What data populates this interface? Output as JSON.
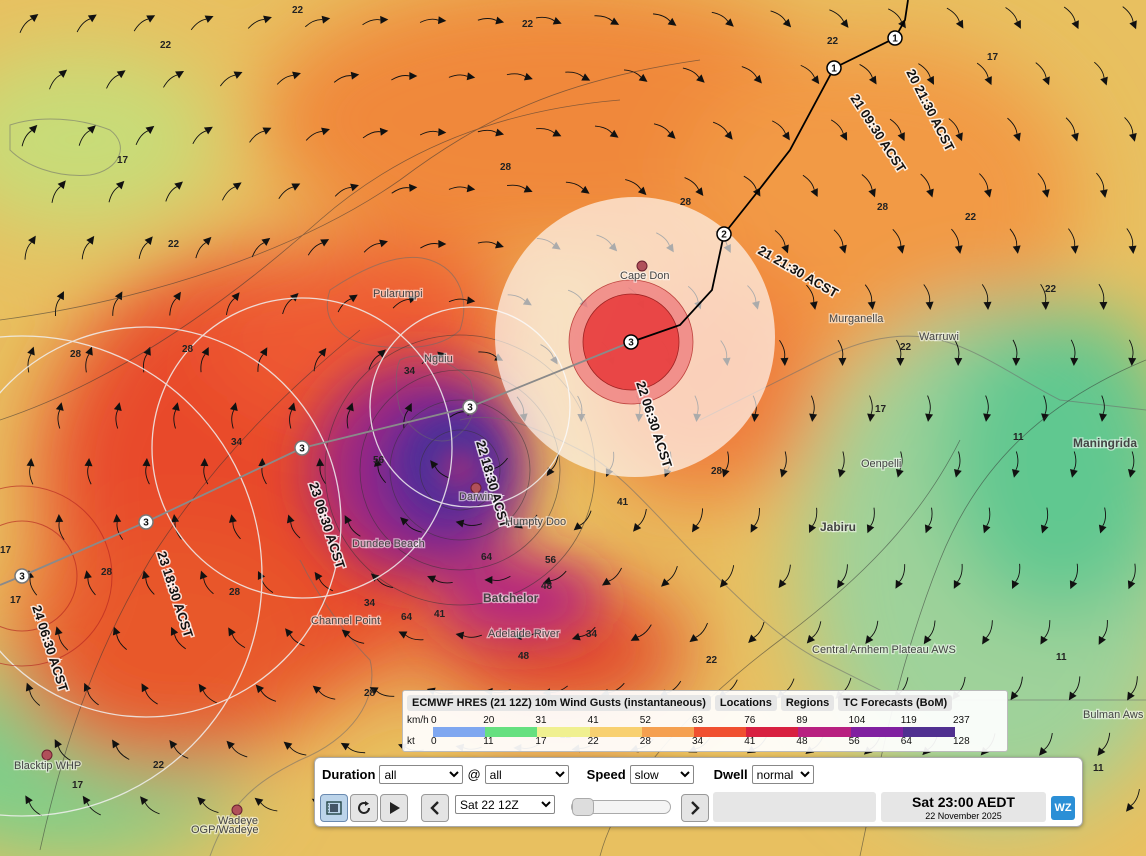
{
  "map": {
    "places": [
      {
        "name": "Cape Don",
        "bold": false
      },
      {
        "name": "Pularumpi",
        "bold": false
      },
      {
        "name": "Nguiu",
        "bold": false
      },
      {
        "name": "Darwin",
        "bold": false
      },
      {
        "name": "Humpty Doo",
        "bold": false
      },
      {
        "name": "Dundee Beach",
        "bold": false
      },
      {
        "name": "Batchelor",
        "bold": true
      },
      {
        "name": "Adelaide River",
        "bold": false
      },
      {
        "name": "Channel Point",
        "bold": false
      },
      {
        "name": "Jabiru",
        "bold": true
      },
      {
        "name": "Oenpelli",
        "bold": false
      },
      {
        "name": "Murganella",
        "bold": false
      },
      {
        "name": "Warruwi",
        "bold": false
      },
      {
        "name": "Maningrida",
        "bold": true
      },
      {
        "name": "Central Arnhem Plateau AWS",
        "bold": false
      },
      {
        "name": "Bulman Aws",
        "bold": false
      },
      {
        "name": "Blacktip WHP",
        "bold": false
      },
      {
        "name": "Wadeye",
        "bold": false
      },
      {
        "name": "OGP/Wadeye",
        "bold": false
      }
    ],
    "contour_labels": [
      "22",
      "22",
      "22",
      "22",
      "22",
      "22",
      "22",
      "22",
      "22",
      "22",
      "22",
      "17",
      "17",
      "17",
      "17",
      "17",
      "17",
      "17",
      "11",
      "11",
      "11",
      "28",
      "28",
      "28",
      "28",
      "28",
      "28",
      "28",
      "28",
      "28",
      "34",
      "34",
      "34",
      "34",
      "41",
      "41",
      "48",
      "48",
      "56",
      "56",
      "64",
      "64"
    ],
    "track_labels": [
      "20 21:30 ACST",
      "21 09:30 ACST",
      "21 21:30 ACST",
      "22 06:30 ACST",
      "22 18:30 ACST",
      "23 06:30 ACST",
      "23 18:30 ACST",
      "24 06:30 ACST"
    ],
    "track_categories": [
      "1",
      "1",
      "2",
      "3",
      "3",
      "3",
      "3",
      "3"
    ]
  },
  "legend": {
    "tabs": [
      "ECMWF HRES (21 12Z) 10m Wind Gusts (instantaneous)",
      "Locations",
      "Regions",
      "TC Forecasts (BoM)"
    ],
    "kmh_label": "km/h",
    "kt_label": "kt",
    "kmh_ticks": [
      "0",
      "20",
      "31",
      "41",
      "52",
      "63",
      "76",
      "89",
      "104",
      "119",
      "237"
    ],
    "kt_ticks": [
      "0",
      "11",
      "17",
      "22",
      "28",
      "34",
      "41",
      "48",
      "56",
      "64",
      "128"
    ],
    "colors": [
      "#7fa7f0",
      "#66e080",
      "#f0f090",
      "#f8d070",
      "#f5a050",
      "#f05030",
      "#d82040",
      "#b82080",
      "#8020a0",
      "#503090"
    ]
  },
  "controls": {
    "duration_label": "Duration",
    "duration_value": "all",
    "at_label": "@",
    "at_value": "all",
    "speed_label": "Speed",
    "speed_value": "slow",
    "dwell_label": "Dwell",
    "dwell_value": "normal",
    "time_value": "Sat 22 12Z",
    "display_time": "Sat 23:00 AEDT",
    "display_date": "22 November 2025",
    "logo_text": "WZ"
  }
}
